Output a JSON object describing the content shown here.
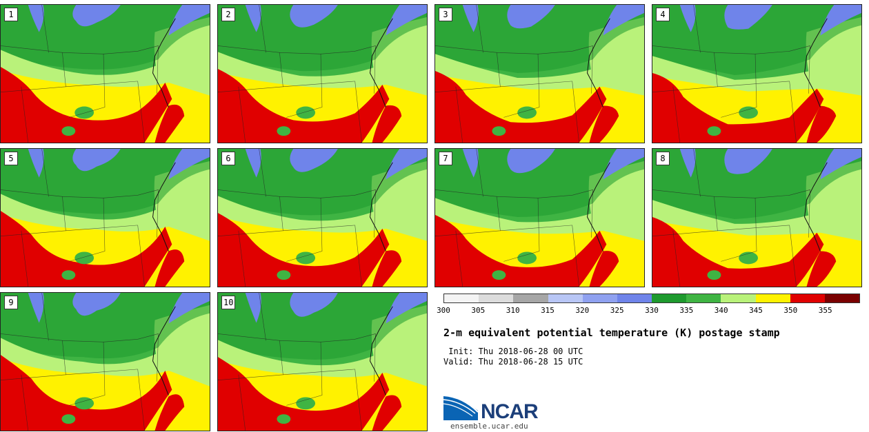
{
  "panels": [
    {
      "label": "1"
    },
    {
      "label": "2"
    },
    {
      "label": "3"
    },
    {
      "label": "4"
    },
    {
      "label": "5"
    },
    {
      "label": "6"
    },
    {
      "label": "7"
    },
    {
      "label": "8"
    },
    {
      "label": "9"
    },
    {
      "label": "10"
    }
  ],
  "colorbar": {
    "colors": [
      "#f4f4f4",
      "#dcdcdc",
      "#a6a6a6",
      "#b8c6f5",
      "#8fa1f0",
      "#6f84ea",
      "#1e9a2e",
      "#3fb443",
      "#b9f27a",
      "#fff200",
      "#e00000",
      "#7a0000"
    ],
    "ticks": [
      "300",
      "305",
      "310",
      "315",
      "320",
      "325",
      "330",
      "335",
      "340",
      "345",
      "350",
      "355"
    ]
  },
  "title": "2-m equivalent potential temperature (K) postage stamp",
  "init_text": " Init: Thu 2018-06-28 00 UTC",
  "valid_text": "Valid: Thu 2018-06-28 15 UTC",
  "logo": {
    "name": "NCAR",
    "url": "ensemble.ucar.edu"
  }
}
